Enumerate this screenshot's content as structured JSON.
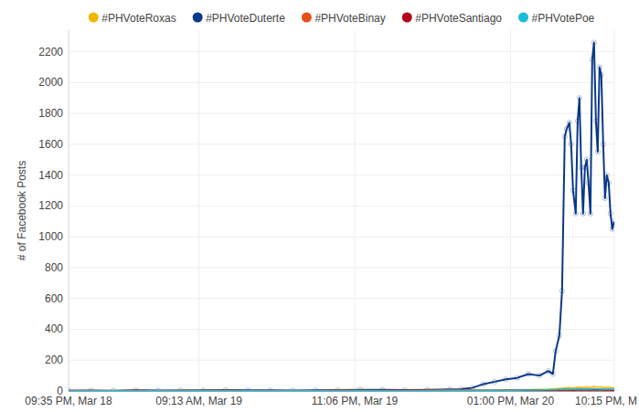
{
  "chart_data": {
    "type": "line",
    "y_label": "# of Facebook Posts",
    "x": [
      0,
      2,
      4,
      6,
      8,
      10,
      12,
      14,
      16,
      18,
      20,
      22,
      24,
      26,
      28,
      30,
      32,
      34,
      35,
      36,
      37,
      38,
      39,
      40,
      41,
      42,
      42.79,
      43.19,
      43.44,
      43.77,
      44.01,
      44.25,
      44.42,
      44.66,
      44.82,
      44.99,
      45.23,
      45.4,
      45.56,
      45.72,
      45.88,
      46.05,
      46.21,
      46.37,
      46.54,
      46.7,
      46.86,
      47.03,
      47.19,
      47.35,
      47.51,
      47.68,
      47.84,
      48,
      48.17,
      48.33,
      48.49,
      48.66
    ],
    "xlim": [
      0,
      48.67
    ],
    "xticks": [
      {
        "value": 0,
        "label": "09:35 PM, Mar 18"
      },
      {
        "value": 11.63,
        "label": "09:13 AM, Mar 19"
      },
      {
        "value": 25.52,
        "label": "11:06 PM, Mar 19"
      },
      {
        "value": 39.42,
        "label": "01:00 PM, Mar 20"
      },
      {
        "value": 48.67,
        "label": "10:15 PM, M"
      }
    ],
    "ylim": [
      0,
      2340
    ],
    "yticks": [
      0,
      200,
      400,
      600,
      800,
      1000,
      1200,
      1400,
      1600,
      1800,
      2000,
      2200
    ],
    "grid": true,
    "legend": "top",
    "series": [
      {
        "name": "#PHVoteRoxas",
        "color": "#f2b600",
        "values": [
          1,
          2,
          1,
          2,
          2,
          3,
          2,
          3,
          2,
          2,
          1,
          2,
          3,
          3,
          2,
          2,
          3,
          4,
          4,
          5,
          5,
          6,
          7,
          8,
          9,
          10,
          12,
          14,
          15,
          17,
          18,
          20,
          21,
          22,
          20,
          19,
          22,
          24,
          25,
          23,
          22,
          24,
          26,
          25,
          23,
          27,
          28,
          26,
          25,
          27,
          26,
          24,
          22,
          23,
          24,
          22,
          20,
          21
        ]
      },
      {
        "name": "#PHVoteDuterte",
        "color": "#0b3887",
        "marker": "circle",
        "values": [
          2,
          3,
          2,
          4,
          3,
          5,
          4,
          6,
          5,
          4,
          3,
          5,
          6,
          8,
          7,
          6,
          8,
          10,
          12,
          20,
          45,
          60,
          75,
          85,
          110,
          100,
          130,
          110,
          260,
          360,
          650,
          1650,
          1700,
          1740,
          1600,
          1300,
          1150,
          1750,
          1900,
          1450,
          1150,
          1450,
          1500,
          1350,
          1150,
          2150,
          2260,
          1750,
          1550,
          2100,
          2050,
          1600,
          1250,
          1400,
          1350,
          1150,
          1050,
          1100
        ]
      },
      {
        "name": "#PHVoteBinay",
        "color": "#e5501b",
        "values": [
          2,
          3,
          2,
          3,
          2,
          2,
          3,
          2,
          2,
          3,
          2,
          2,
          3,
          2,
          3,
          3,
          4,
          3,
          4,
          4,
          5,
          5,
          6,
          6,
          7,
          7,
          8,
          9,
          9,
          10,
          11,
          12,
          12,
          13,
          12,
          11,
          12,
          13,
          14,
          13,
          12,
          13,
          14,
          13,
          12,
          14,
          15,
          14,
          13,
          14,
          13,
          12,
          11,
          12,
          13,
          12,
          11,
          12
        ]
      },
      {
        "name": "#PHVoteSantiago",
        "color": "#b3001b",
        "values": [
          3,
          2,
          2,
          3,
          2,
          2,
          2,
          3,
          2,
          2,
          2,
          2,
          3,
          2,
          2,
          3,
          3,
          2,
          3,
          3,
          3,
          3,
          4,
          4,
          4,
          4,
          5,
          5,
          6,
          5,
          6,
          6,
          7,
          6,
          6,
          5,
          6,
          7,
          7,
          6,
          6,
          7,
          7,
          6,
          6,
          7,
          8,
          7,
          6,
          7,
          7,
          6,
          6,
          6,
          7,
          6,
          5,
          6
        ]
      },
      {
        "name": "#PHVotePoe",
        "color": "#17bfd6",
        "values": [
          1,
          1,
          2,
          1,
          1,
          2,
          1,
          2,
          1,
          1,
          1,
          2,
          2,
          1,
          2,
          2,
          2,
          3,
          3,
          3,
          4,
          4,
          5,
          5,
          6,
          6,
          7,
          8,
          8,
          9,
          10,
          10,
          11,
          12,
          11,
          10,
          11,
          12,
          13,
          12,
          11,
          12,
          13,
          12,
          11,
          13,
          14,
          13,
          12,
          13,
          12,
          11,
          10,
          11,
          12,
          11,
          10,
          10
        ]
      }
    ]
  }
}
